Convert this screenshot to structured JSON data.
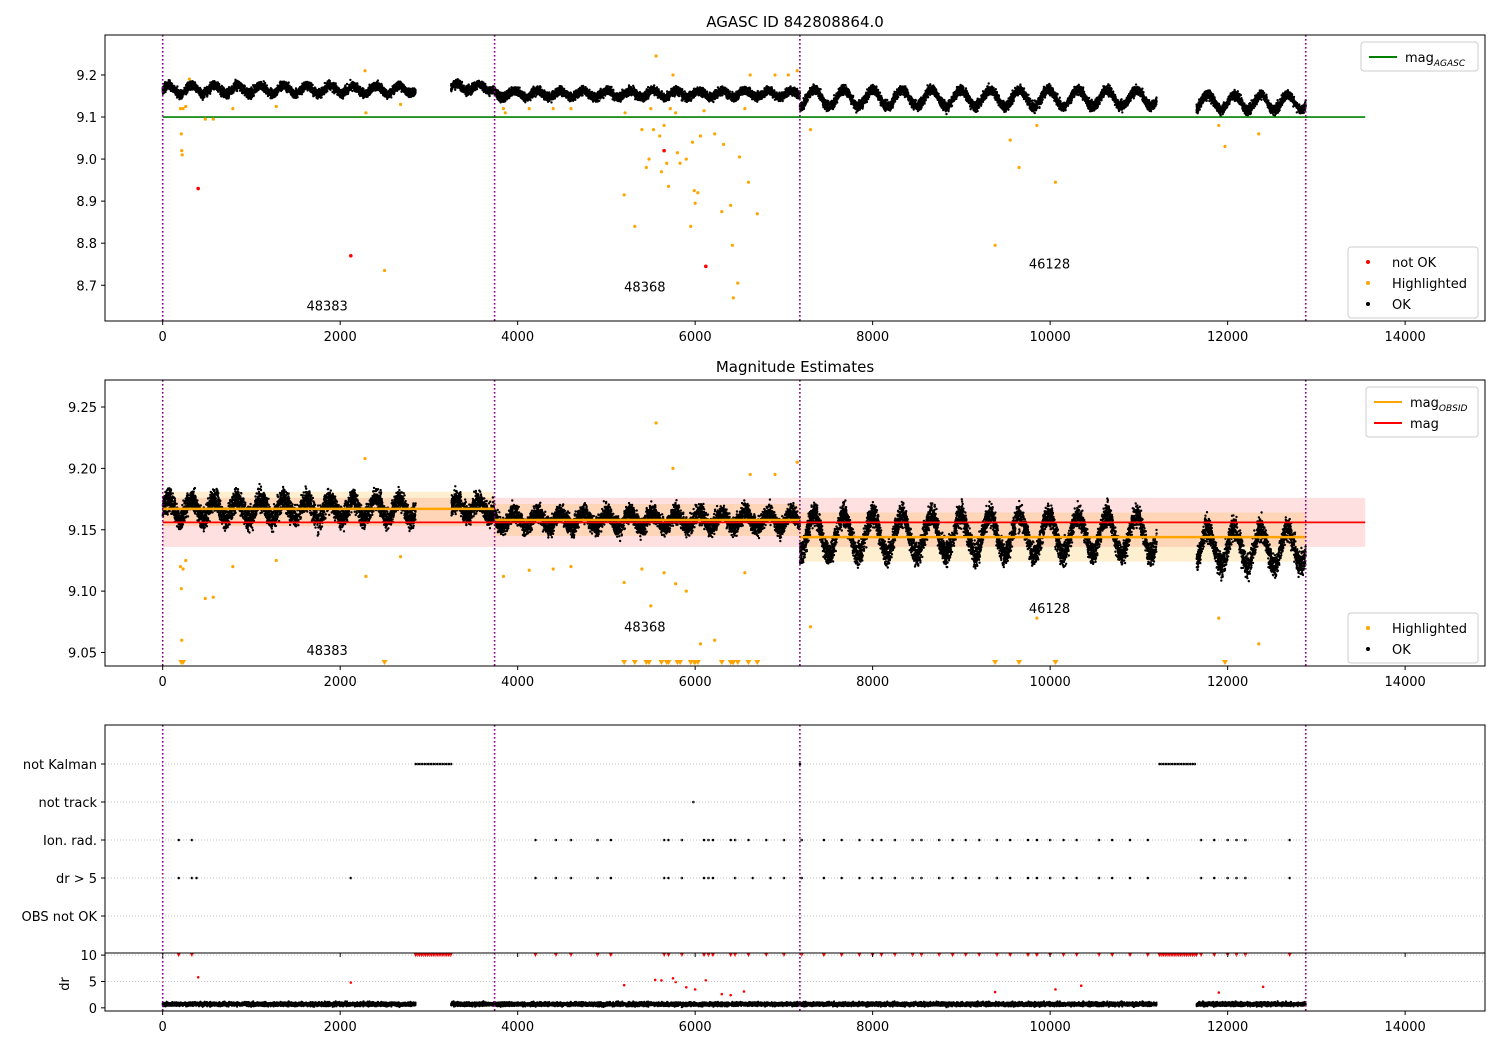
{
  "chart_data": [
    {
      "type": "scatter",
      "title": "AGASC ID 842808864.0",
      "xlabel": "",
      "ylabel": "",
      "xlim": [
        -650,
        14900
      ],
      "ylim": [
        8.615,
        9.295
      ],
      "xticks": [
        0,
        2000,
        4000,
        6000,
        8000,
        10000,
        12000,
        14000
      ],
      "yticks": [
        8.7,
        8.8,
        8.9,
        9.0,
        9.1,
        9.2
      ],
      "ytick_labels": [
        "8.7",
        "8.8",
        "8.9",
        "9.0",
        "9.1",
        "9.2"
      ],
      "legend_top": {
        "location": "top-right",
        "entries": [
          {
            "label": "mag",
            "sub": "AGASC",
            "color": "#008000",
            "kind": "line"
          }
        ]
      },
      "legend_bottom": {
        "location": "lower-right",
        "entries": [
          {
            "label": "not OK",
            "color": "#ff0000",
            "kind": "point"
          },
          {
            "label": "Highlighted",
            "color": "#ffa500",
            "kind": "point"
          },
          {
            "label": "OK",
            "color": "#000000",
            "kind": "point"
          }
        ]
      },
      "hlines": [
        {
          "y": 9.1,
          "x0": 0,
          "x1": 13550,
          "color": "#008000"
        }
      ],
      "obsid_boundaries": [
        0,
        3740,
        7180,
        12880
      ],
      "obsid_labels": [
        {
          "text": "48383",
          "x": 1620,
          "y": 8.64
        },
        {
          "text": "48368",
          "x": 5200,
          "y": 8.685
        },
        {
          "text": "46128",
          "x": 9760,
          "y": 8.74
        }
      ],
      "ok_segments": [
        {
          "x0": 0,
          "x1": 2850,
          "center": 9.165,
          "spread": 0.018,
          "amp": 0.01,
          "period": 260
        },
        {
          "x0": 3250,
          "x1": 3740,
          "center": 9.17,
          "spread": 0.018,
          "amp": 0.008,
          "period": 250
        },
        {
          "x0": 3740,
          "x1": 7180,
          "center": 9.155,
          "spread": 0.018,
          "amp": 0.008,
          "period": 260
        },
        {
          "x0": 7180,
          "x1": 11200,
          "center": 9.145,
          "spread": 0.02,
          "amp": 0.02,
          "period": 330
        },
        {
          "x0": 11650,
          "x1": 12880,
          "center": 9.135,
          "spread": 0.02,
          "amp": 0.018,
          "period": 300
        }
      ],
      "highlighted_points": [
        [
          200,
          9.12
        ],
        [
          210,
          9.06
        ],
        [
          215,
          9.02
        ],
        [
          220,
          9.01
        ],
        [
          230,
          9.12
        ],
        [
          260,
          9.125
        ],
        [
          300,
          9.19
        ],
        [
          480,
          9.095
        ],
        [
          570,
          9.095
        ],
        [
          790,
          9.12
        ],
        [
          1280,
          9.125
        ],
        [
          2280,
          9.21
        ],
        [
          2290,
          9.11
        ],
        [
          2500,
          8.735
        ],
        [
          2680,
          9.13
        ],
        [
          3840,
          9.12
        ],
        [
          3860,
          9.11
        ],
        [
          4130,
          9.12
        ],
        [
          4400,
          9.12
        ],
        [
          4600,
          9.12
        ],
        [
          5200,
          8.915
        ],
        [
          5210,
          9.11
        ],
        [
          5320,
          8.84
        ],
        [
          5400,
          9.07
        ],
        [
          5450,
          8.98
        ],
        [
          5480,
          9.0
        ],
        [
          5500,
          9.12
        ],
        [
          5530,
          9.07
        ],
        [
          5560,
          9.245
        ],
        [
          5600,
          9.055
        ],
        [
          5620,
          8.97
        ],
        [
          5650,
          9.08
        ],
        [
          5680,
          8.99
        ],
        [
          5700,
          8.935
        ],
        [
          5720,
          9.12
        ],
        [
          5750,
          9.2
        ],
        [
          5780,
          9.11
        ],
        [
          5800,
          9.015
        ],
        [
          5830,
          8.99
        ],
        [
          5900,
          9.0
        ],
        [
          5950,
          8.84
        ],
        [
          5970,
          9.04
        ],
        [
          5990,
          8.925
        ],
        [
          6000,
          8.895
        ],
        [
          6030,
          8.92
        ],
        [
          6060,
          9.055
        ],
        [
          6100,
          9.115
        ],
        [
          6220,
          9.06
        ],
        [
          6300,
          8.875
        ],
        [
          6320,
          9.035
        ],
        [
          6400,
          8.89
        ],
        [
          6420,
          8.795
        ],
        [
          6430,
          8.67
        ],
        [
          6480,
          8.705
        ],
        [
          6500,
          9.005
        ],
        [
          6560,
          9.12
        ],
        [
          6600,
          8.945
        ],
        [
          6620,
          9.2
        ],
        [
          6700,
          8.87
        ],
        [
          6900,
          9.2
        ],
        [
          7050,
          9.2
        ],
        [
          7150,
          9.21
        ],
        [
          7300,
          9.07
        ],
        [
          9380,
          8.795
        ],
        [
          9550,
          9.045
        ],
        [
          9650,
          8.98
        ],
        [
          9850,
          9.08
        ],
        [
          10060,
          8.945
        ],
        [
          11900,
          9.08
        ],
        [
          11970,
          9.03
        ],
        [
          12350,
          9.06
        ]
      ],
      "notok_points": [
        [
          400,
          8.93
        ],
        [
          2120,
          8.77
        ],
        [
          5650,
          9.02
        ],
        [
          6120,
          8.745
        ]
      ]
    },
    {
      "type": "scatter",
      "title": "Magnitude Estimates",
      "xlabel": "",
      "ylabel": "",
      "xlim": [
        -650,
        14900
      ],
      "ylim": [
        9.039,
        9.272
      ],
      "xticks": [
        0,
        2000,
        4000,
        6000,
        8000,
        10000,
        12000,
        14000
      ],
      "yticks": [
        9.05,
        9.1,
        9.15,
        9.2,
        9.25
      ],
      "ytick_labels": [
        "9.05",
        "9.10",
        "9.15",
        "9.20",
        "9.25"
      ],
      "legend_top": {
        "location": "top-right",
        "entries": [
          {
            "label": "mag",
            "sub": "OBSID",
            "color": "#ffa500",
            "kind": "line"
          },
          {
            "label": "mag",
            "sub": "",
            "color": "#ff0000",
            "kind": "line"
          }
        ]
      },
      "legend_bottom": {
        "location": "lower-right",
        "entries": [
          {
            "label": "Highlighted",
            "color": "#ffa500",
            "kind": "point"
          },
          {
            "label": "OK",
            "color": "#000000",
            "kind": "point"
          }
        ]
      },
      "mag": {
        "value": 9.156,
        "band": [
          9.136,
          9.176
        ],
        "x0": 0,
        "x1": 13550
      },
      "mag_obsid": [
        {
          "x0": 0,
          "x1": 3740,
          "value": 9.167,
          "band": [
            9.153,
            9.181
          ]
        },
        {
          "x0": 3740,
          "x1": 7180,
          "value": 9.158,
          "band": [
            9.145,
            9.171
          ]
        },
        {
          "x0": 7180,
          "x1": 12880,
          "value": 9.144,
          "band": [
            9.124,
            9.164
          ]
        }
      ],
      "obsid_boundaries": [
        0,
        3740,
        7180,
        12880
      ],
      "obsid_labels": [
        {
          "text": "48383",
          "x": 1620,
          "y": 9.048
        },
        {
          "text": "48368",
          "x": 5200,
          "y": 9.067
        },
        {
          "text": "46128",
          "x": 9760,
          "y": 9.082
        }
      ],
      "ok_segments": [
        {
          "x0": 0,
          "x1": 2850,
          "center": 9.167,
          "spread": 0.016,
          "amp": 0.008,
          "period": 260
        },
        {
          "x0": 3250,
          "x1": 3740,
          "center": 9.168,
          "spread": 0.015,
          "amp": 0.006,
          "period": 250
        },
        {
          "x0": 3740,
          "x1": 7180,
          "center": 9.158,
          "spread": 0.013,
          "amp": 0.006,
          "period": 260
        },
        {
          "x0": 7180,
          "x1": 11200,
          "center": 9.146,
          "spread": 0.017,
          "amp": 0.016,
          "period": 330
        },
        {
          "x0": 11650,
          "x1": 12880,
          "center": 9.136,
          "spread": 0.017,
          "amp": 0.015,
          "period": 300
        }
      ],
      "highlighted_points": [
        [
          200,
          9.12
        ],
        [
          210,
          9.102
        ],
        [
          215,
          9.06
        ],
        [
          230,
          9.118
        ],
        [
          260,
          9.125
        ],
        [
          480,
          9.094
        ],
        [
          570,
          9.095
        ],
        [
          790,
          9.12
        ],
        [
          1280,
          9.125
        ],
        [
          2280,
          9.208
        ],
        [
          2290,
          9.112
        ],
        [
          2680,
          9.128
        ],
        [
          3840,
          9.112
        ],
        [
          4130,
          9.117
        ],
        [
          4400,
          9.118
        ],
        [
          4600,
          9.12
        ],
        [
          5200,
          9.107
        ],
        [
          5400,
          9.118
        ],
        [
          5500,
          9.088
        ],
        [
          5560,
          9.237
        ],
        [
          5650,
          9.115
        ],
        [
          5750,
          9.2
        ],
        [
          5780,
          9.106
        ],
        [
          5900,
          9.1
        ],
        [
          6060,
          9.057
        ],
        [
          6220,
          9.06
        ],
        [
          6560,
          9.115
        ],
        [
          6620,
          9.195
        ],
        [
          6900,
          9.195
        ],
        [
          7150,
          9.205
        ],
        [
          7300,
          9.071
        ],
        [
          9850,
          9.078
        ],
        [
          11900,
          9.078
        ],
        [
          12350,
          9.057
        ]
      ],
      "lower_markers": [
        210,
        230,
        2500,
        5200,
        5320,
        5450,
        5480,
        5620,
        5680,
        5700,
        5800,
        5830,
        5950,
        5990,
        6000,
        6030,
        6300,
        6400,
        6420,
        6430,
        6480,
        6600,
        6700,
        9380,
        9650,
        10060,
        11970
      ]
    },
    {
      "type": "scatter",
      "title": "",
      "xlabel": "",
      "ylabel": "",
      "categories": [
        "not Kalman",
        "not track",
        "Ion. rad.",
        "dr > 5",
        "OBS not OK"
      ],
      "xlim": [
        -650,
        14900
      ],
      "xticks": [
        0,
        2000,
        4000,
        6000,
        8000,
        10000,
        12000,
        14000
      ],
      "obsid_boundaries": [
        0,
        3740,
        7180,
        12880
      ],
      "not_kalman": [
        [
          2850,
          3250
        ],
        [
          11230,
          11650
        ]
      ],
      "not_kalman_single": [
        7180
      ],
      "not_track": [
        5980
      ],
      "ion_rad": [
        180,
        330,
        4200,
        4430,
        4600,
        4900,
        5050,
        5650,
        5700,
        5850,
        6100,
        6150,
        6200,
        6400,
        6450,
        6600,
        6800,
        7000,
        7200,
        7450,
        7650,
        7850,
        8000,
        8100,
        8250,
        8450,
        8550,
        8750,
        8900,
        9050,
        9200,
        9400,
        9550,
        9750,
        9850,
        10000,
        10150,
        10300,
        10550,
        10700,
        10900,
        11100,
        11700,
        11850,
        12000,
        12100,
        12200,
        12700
      ],
      "dr_gt_5": [
        180,
        330,
        380,
        2120,
        4200,
        4430,
        4600,
        4900,
        5050,
        5650,
        5700,
        5850,
        6100,
        6150,
        6200,
        6450,
        6650,
        6850,
        7000,
        7200,
        7450,
        7650,
        7850,
        8000,
        8100,
        8250,
        8450,
        8550,
        8750,
        8900,
        9050,
        9200,
        9400,
        9550,
        9750,
        9850,
        10000,
        10150,
        10300,
        10550,
        10700,
        10900,
        11100,
        11700,
        11850,
        12000,
        12100,
        12200,
        12700
      ]
    },
    {
      "type": "scatter",
      "title": "",
      "xlabel": "",
      "ylabel": "dr",
      "xlim": [
        -650,
        14900
      ],
      "ylim": [
        -0.6,
        10.4
      ],
      "xticks": [
        0,
        2000,
        4000,
        6000,
        8000,
        10000,
        12000,
        14000
      ],
      "xtick_labels": [
        "0",
        "2000",
        "4000",
        "6000",
        "8000",
        "10000",
        "12000",
        "14000"
      ],
      "yticks": [
        0,
        5,
        10
      ],
      "ytick_labels": [
        "0",
        "5",
        "10"
      ],
      "obsid_boundaries": [
        0,
        3740,
        7180,
        12880
      ],
      "ok_segments": [
        [
          0,
          2850
        ],
        [
          3250,
          3740
        ],
        [
          3740,
          7180
        ],
        [
          7180,
          11200
        ],
        [
          11650,
          12880
        ]
      ],
      "red_capped_ranges": [
        [
          2850,
          3250
        ],
        [
          11230,
          11650
        ]
      ],
      "red_capped": [
        180,
        330,
        4200,
        4430,
        4600,
        4900,
        5050,
        5650,
        5700,
        5850,
        6100,
        6150,
        6200,
        6400,
        6450,
        6600,
        6800,
        7000,
        7200,
        7450,
        7650,
        7850,
        8000,
        8100,
        8250,
        8450,
        8550,
        8750,
        8900,
        9050,
        9200,
        9400,
        9550,
        9750,
        9850,
        10000,
        10150,
        10300,
        10550,
        10700,
        10900,
        11100,
        11700,
        11850,
        12000,
        12100,
        12200,
        12700
      ],
      "red_points": [
        [
          400,
          5.8
        ],
        [
          2120,
          4.8
        ],
        [
          5200,
          4.3
        ],
        [
          5550,
          5.3
        ],
        [
          5620,
          5.2
        ],
        [
          5750,
          5.6
        ],
        [
          5780,
          4.9
        ],
        [
          5900,
          3.9
        ],
        [
          6000,
          3.5
        ],
        [
          6120,
          5.2
        ],
        [
          6300,
          2.6
        ],
        [
          6400,
          2.4
        ],
        [
          6550,
          3.1
        ],
        [
          9380,
          3.0
        ],
        [
          10060,
          3.5
        ],
        [
          10350,
          4.2
        ],
        [
          11900,
          2.9
        ],
        [
          12400,
          4.0
        ]
      ]
    }
  ]
}
